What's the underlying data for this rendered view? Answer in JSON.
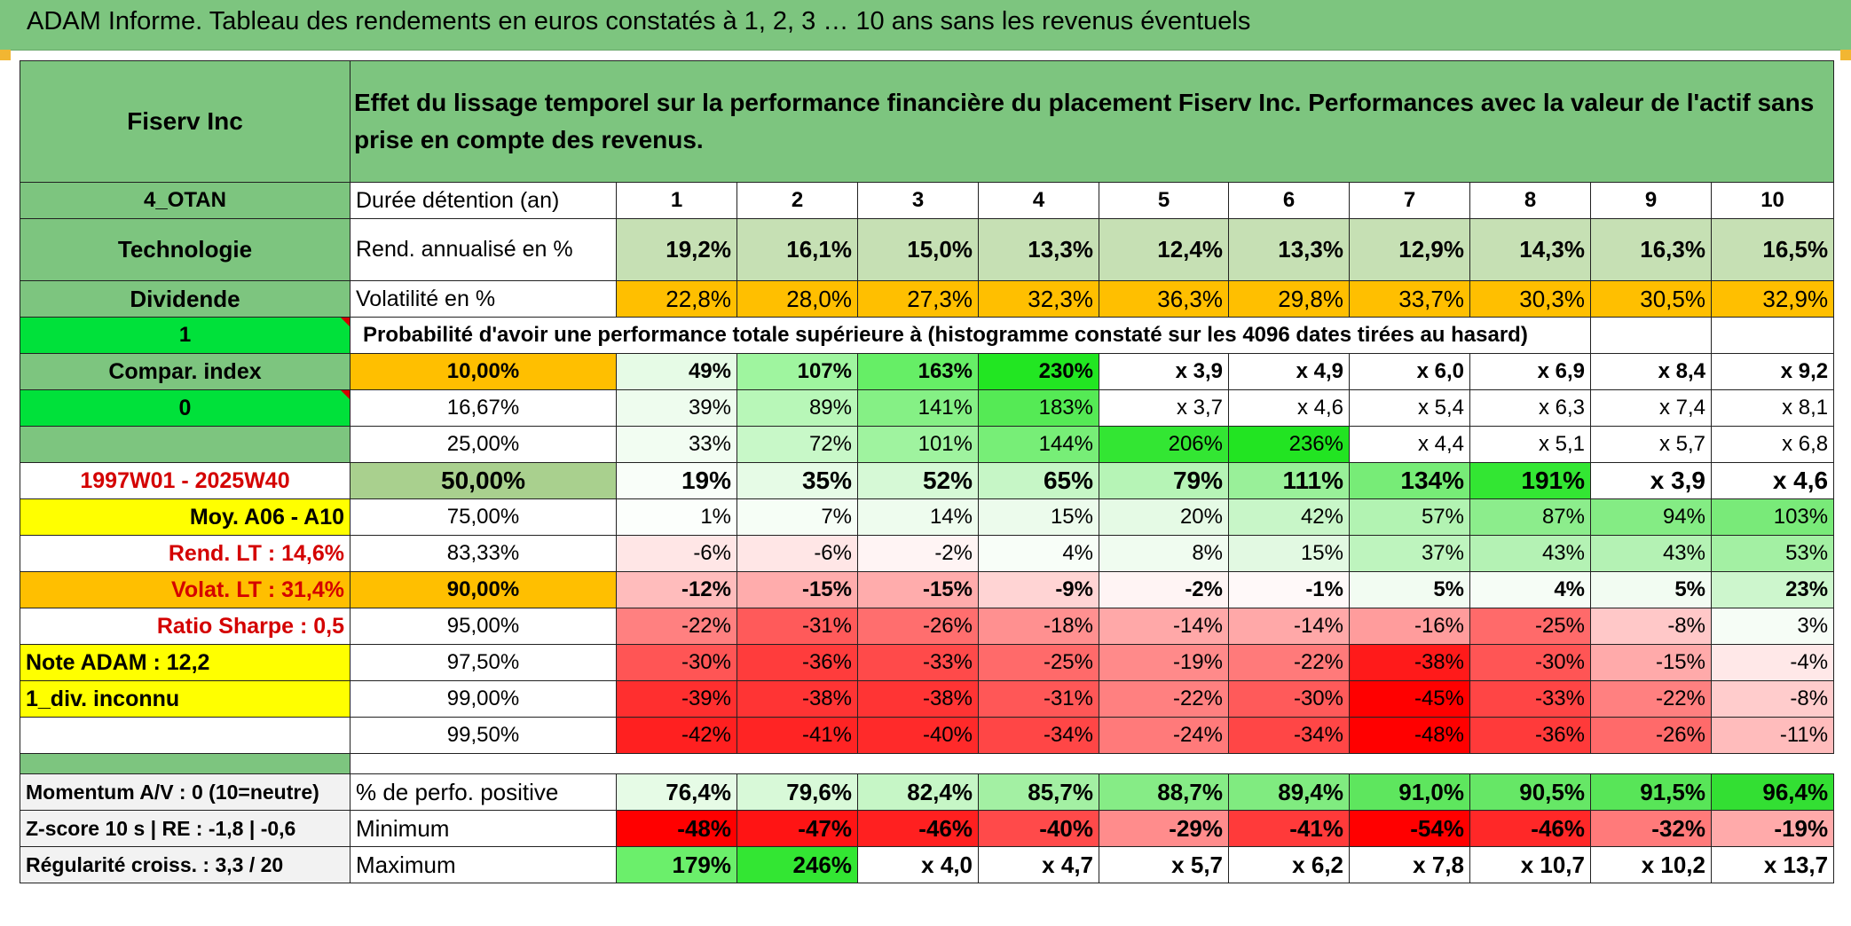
{
  "title": "ADAM Informe. Tableau des rendements en euros constatés à 1, 2, 3 … 10 ans sans les revenus éventuels",
  "header": {
    "name": "Fiserv Inc",
    "description": "Effet du lissage temporel sur la performance financière du placement Fiserv Inc. Performances avec la valeur de l'actif sans prise en compte des revenus."
  },
  "left": {
    "code": "4_OTAN",
    "sector": "Technologie",
    "dividende": "Dividende",
    "val1": "1",
    "compar": "Compar. index",
    "val0": "0",
    "period": "1997W01 - 2025W40",
    "moy": "Moy. A06 - A10",
    "rend_lt": "Rend. LT :   14,6%",
    "volat_lt": "Volat. LT :   31,4%",
    "sharpe": "Ratio Sharpe :    0,5",
    "note": "Note ADAM : 12,2",
    "div": "1_div. inconnu",
    "momentum": "Momentum A/V : 0 (10=neutre)",
    "zscore": "Z-score 10 s | RE : -1,8 | -0,6",
    "regularite": "Régularité croiss. : 3,3 / 20"
  },
  "labels": {
    "duree": "Durée détention (an)",
    "rend": "Rend. annualisé en %",
    "vol": "Volatilité en %",
    "proba": "Probabilité d'avoir une performance totale supérieure à (histogramme constaté sur les 4096 dates tirées au hasard)",
    "pos": "% de perfo. positive",
    "min": "Minimum",
    "max": "Maximum"
  },
  "years": [
    "1",
    "2",
    "3",
    "4",
    "5",
    "6",
    "7",
    "8",
    "9",
    "10"
  ],
  "rend": [
    "19,2%",
    "16,1%",
    "15,0%",
    "13,3%",
    "12,4%",
    "13,3%",
    "12,9%",
    "14,3%",
    "16,3%",
    "16,5%"
  ],
  "vol": [
    "22,8%",
    "28,0%",
    "27,3%",
    "32,3%",
    "36,3%",
    "29,8%",
    "33,7%",
    "30,3%",
    "30,5%",
    "32,9%"
  ],
  "pct_rows": [
    {
      "p": "10,00%",
      "v": [
        "49%",
        "107%",
        "163%",
        "230%",
        "x 3,9",
        "x 4,9",
        "x 6,0",
        "x 6,9",
        "x 8,4",
        "x 9,2"
      ]
    },
    {
      "p": "16,67%",
      "v": [
        "39%",
        "89%",
        "141%",
        "183%",
        "x 3,7",
        "x 4,6",
        "x 5,4",
        "x 6,3",
        "x 7,4",
        "x 8,1"
      ]
    },
    {
      "p": "25,00%",
      "v": [
        "33%",
        "72%",
        "101%",
        "144%",
        "206%",
        "236%",
        "x 4,4",
        "x 5,1",
        "x 5,7",
        "x 6,8"
      ]
    },
    {
      "p": "50,00%",
      "v": [
        "19%",
        "35%",
        "52%",
        "65%",
        "79%",
        "111%",
        "134%",
        "191%",
        "x 3,9",
        "x 4,6"
      ]
    },
    {
      "p": "75,00%",
      "v": [
        "1%",
        "7%",
        "14%",
        "15%",
        "20%",
        "42%",
        "57%",
        "87%",
        "94%",
        "103%"
      ]
    },
    {
      "p": "83,33%",
      "v": [
        "-6%",
        "-6%",
        "-2%",
        "4%",
        "8%",
        "15%",
        "37%",
        "43%",
        "43%",
        "53%"
      ]
    },
    {
      "p": "90,00%",
      "v": [
        "-12%",
        "-15%",
        "-15%",
        "-9%",
        "-2%",
        "-1%",
        "5%",
        "4%",
        "5%",
        "23%"
      ]
    },
    {
      "p": "95,00%",
      "v": [
        "-22%",
        "-31%",
        "-26%",
        "-18%",
        "-14%",
        "-14%",
        "-16%",
        "-25%",
        "-8%",
        "3%"
      ]
    },
    {
      "p": "97,50%",
      "v": [
        "-30%",
        "-36%",
        "-33%",
        "-25%",
        "-19%",
        "-22%",
        "-38%",
        "-30%",
        "-15%",
        "-4%"
      ]
    },
    {
      "p": "99,00%",
      "v": [
        "-39%",
        "-38%",
        "-38%",
        "-31%",
        "-22%",
        "-30%",
        "-45%",
        "-33%",
        "-22%",
        "-8%"
      ]
    },
    {
      "p": "99,50%",
      "v": [
        "-42%",
        "-41%",
        "-40%",
        "-34%",
        "-24%",
        "-34%",
        "-48%",
        "-36%",
        "-26%",
        "-11%"
      ]
    }
  ],
  "pos": [
    "76,4%",
    "79,6%",
    "82,4%",
    "85,7%",
    "88,7%",
    "89,4%",
    "91,0%",
    "90,5%",
    "91,5%",
    "96,4%"
  ],
  "min": [
    "-48%",
    "-47%",
    "-46%",
    "-40%",
    "-29%",
    "-41%",
    "-54%",
    "-46%",
    "-32%",
    "-19%"
  ],
  "max": [
    "179%",
    "246%",
    "x 4,0",
    "x 4,7",
    "x 5,7",
    "x 6,2",
    "x 7,8",
    "x 10,7",
    "x 10,2",
    "x 13,7"
  ],
  "colors": {
    "rend": [
      "#c6e0b4",
      "#c6e0b4",
      "#c6e0b4",
      "#c6e0b4",
      "#c6e0b4",
      "#c6e0b4",
      "#c6e0b4",
      "#c6e0b4",
      "#c6e0b4",
      "#c6e0b4"
    ],
    "vol": [
      "#ffbf00",
      "#ffbf00",
      "#ffbf00",
      "#ffbf00",
      "#ffbf00",
      "#ffbf00",
      "#ffbf00",
      "#ffbf00",
      "#ffbf00",
      "#ffbf00"
    ],
    "rows": [
      [
        "#e6fbe6",
        "#9ff59f",
        "#66ee66",
        "#22e622",
        "#ffffff",
        "#ffffff",
        "#ffffff",
        "#ffffff",
        "#ffffff",
        "#ffffff"
      ],
      [
        "#eefcee",
        "#b8f7b8",
        "#85f085",
        "#55ea55",
        "#ffffff",
        "#ffffff",
        "#ffffff",
        "#ffffff",
        "#ffffff",
        "#ffffff"
      ],
      [
        "#f2fdf2",
        "#c8f8c8",
        "#9ff39f",
        "#77ee77",
        "#33e633",
        "#22e422",
        "#ffffff",
        "#ffffff",
        "#ffffff",
        "#ffffff"
      ],
      [
        "#f9fef9",
        "#e6fbe6",
        "#d6f9d6",
        "#c6f6c6",
        "#b6f4b6",
        "#99f099",
        "#77ec77",
        "#33e633",
        "#ffffff",
        "#ffffff"
      ],
      [
        "#fcfffc",
        "#f6fef6",
        "#eefcee",
        "#ecfbec",
        "#e5fae5",
        "#c8f6c8",
        "#b2f3b2",
        "#8ced8c",
        "#84ec84",
        "#79ea79"
      ],
      [
        "#ffe6e6",
        "#ffe6e6",
        "#fff4f4",
        "#f8fef8",
        "#f0fcf0",
        "#e2f9e2",
        "#bef4be",
        "#b4f2b4",
        "#b4f2b4",
        "#a3f0a3"
      ],
      [
        "#ffbcbc",
        "#ffacac",
        "#ffacac",
        "#ffd4d4",
        "#fff4f4",
        "#fff9f9",
        "#f2fcf2",
        "#f6fdf6",
        "#f2fcf2",
        "#cdf6cd"
      ],
      [
        "#ff8080",
        "#ff5a5a",
        "#ff6e6e",
        "#ff9090",
        "#ffa8a8",
        "#ffa8a8",
        "#ff9c9c",
        "#ff6a6a",
        "#ffc8c8",
        "#f6fdf6"
      ],
      [
        "#ff5555",
        "#ff3c3c",
        "#ff4a4a",
        "#ff6a6a",
        "#ff8a8a",
        "#ff7a7a",
        "#ff1a1a",
        "#ff5555",
        "#ffaaaa",
        "#ffe8e8"
      ],
      [
        "#ff2f2f",
        "#ff3434",
        "#ff3434",
        "#ff5757",
        "#ff8080",
        "#ff5a5a",
        "#ff0000",
        "#ff4545",
        "#ff8080",
        "#ffcccc"
      ],
      [
        "#ff2020",
        "#ff2424",
        "#ff2a2a",
        "#ff4646",
        "#ff7a7a",
        "#ff4646",
        "#ff0000",
        "#ff3a3a",
        "#ff6a6a",
        "#ffbcbc"
      ]
    ],
    "pos": [
      "#e6fbe6",
      "#d8f9d8",
      "#c6f6c6",
      "#a3f0a3",
      "#86ec86",
      "#80eb80",
      "#5ee65e",
      "#66e766",
      "#58e558",
      "#33df33"
    ],
    "min": [
      "#ff0000",
      "#ff1414",
      "#ff2020",
      "#ff4a4a",
      "#ff8c8c",
      "#ff3a3a",
      "#ff0000",
      "#ff2828",
      "#ff7a7a",
      "#ffaaaa"
    ],
    "max": [
      "#6bef6b",
      "#33e633",
      "#ffffff",
      "#ffffff",
      "#ffffff",
      "#ffffff",
      "#ffffff",
      "#ffffff",
      "#ffffff",
      "#ffffff"
    ]
  }
}
